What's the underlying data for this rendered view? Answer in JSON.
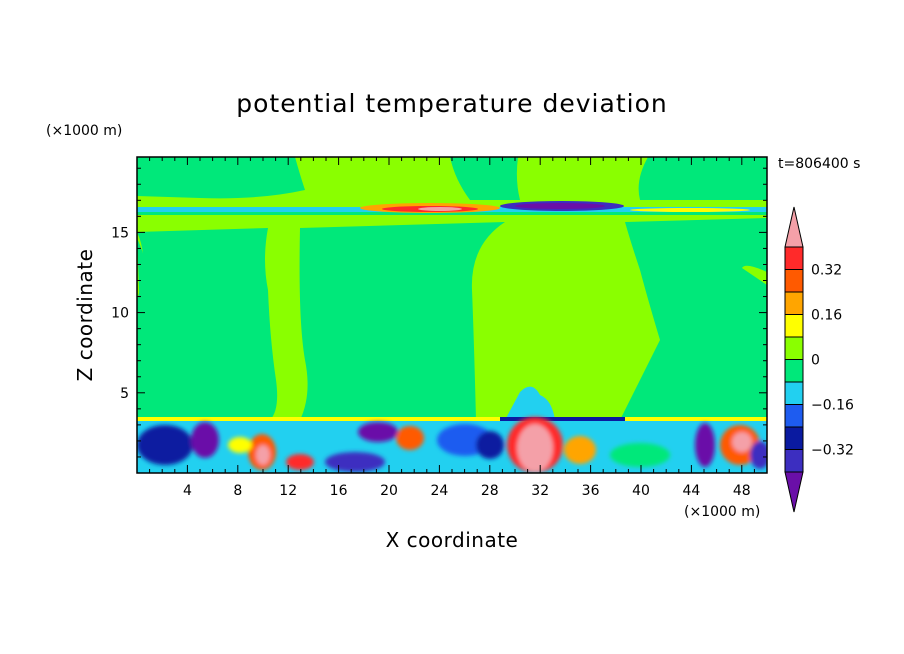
{
  "chart_data": {
    "type": "heatmap",
    "title": "potential temperature deviation",
    "xlabel": "X coordinate",
    "ylabel": "Z coordinate",
    "x_unit": "(×1000 m)",
    "y_unit": "(×1000 m)",
    "time_label": "t=806400 s",
    "xlim": [
      0,
      50
    ],
    "ylim": [
      0,
      19.7
    ],
    "x_ticks": [
      4,
      8,
      12,
      16,
      20,
      24,
      28,
      32,
      36,
      40,
      44,
      48
    ],
    "y_ticks": [
      5,
      10,
      15
    ],
    "colorbar": {
      "levels": [
        -0.4,
        -0.32,
        -0.24,
        -0.16,
        -0.08,
        0,
        0.08,
        0.16,
        0.24,
        0.32,
        0.4
      ],
      "colors": [
        "#6a0fa8",
        "#3c2ec0",
        "#0a1aa0",
        "#1e5cf0",
        "#22d0f0",
        "#00e87a",
        "#8aff00",
        "#ffff00",
        "#ffa500",
        "#ff5a00",
        "#ff2a2a",
        "#f4a0a8"
      ],
      "tick_labels": [
        "0.32",
        "0.16",
        "0",
        "−0.16",
        "−0.32"
      ],
      "tick_values": [
        0.32,
        0.16,
        0,
        -0.16,
        -0.32
      ]
    },
    "grid": false,
    "legend": "right"
  }
}
